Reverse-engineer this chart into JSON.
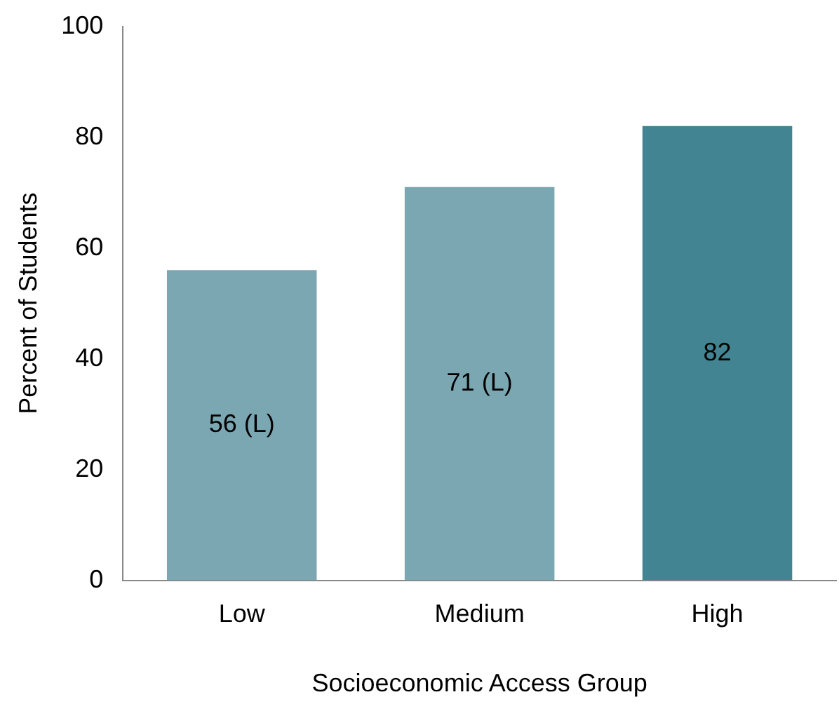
{
  "chart_data": {
    "type": "bar",
    "xlabel": "Socioeconomic Access Group",
    "ylabel": "Percent of Students",
    "categories": [
      "Low",
      "Medium",
      "High"
    ],
    "values": [
      56,
      71,
      82
    ],
    "colors": [
      "#7ba7b2",
      "#7ba7b2",
      "#428491"
    ],
    "value_labels": [
      "56 (L)",
      "71 (L)",
      "82"
    ],
    "ylim": [
      0,
      100
    ],
    "yticks": [
      0,
      20,
      40,
      60,
      80,
      100
    ],
    "grid": false,
    "legend": false
  }
}
